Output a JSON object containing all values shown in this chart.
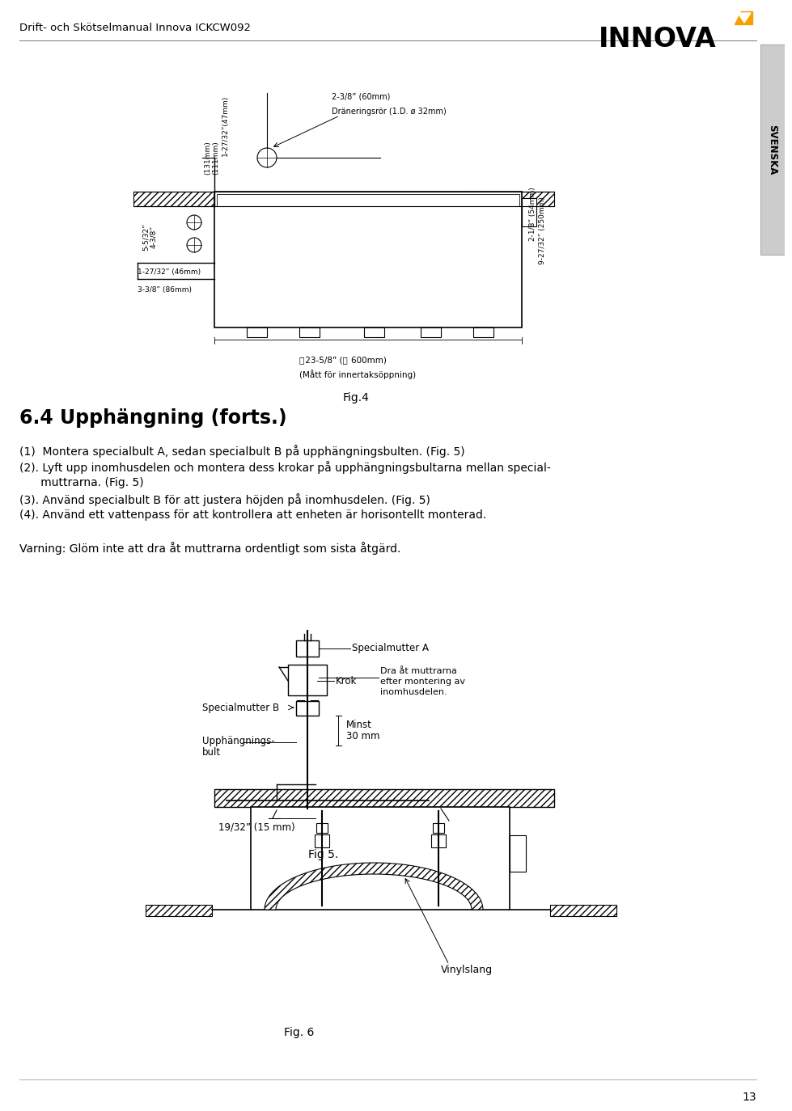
{
  "page_title": "Drift- och Skötselmanual Innova ICKCW092",
  "brand": "INNOVA",
  "side_text": "SVENSKA",
  "section_title": "6.4 Upphängning (forts.)",
  "instructions": [
    "(1)  Montera specialbult A, sedan specialbult B på upphängningsbulten. (Fig. 5)",
    "(2). Lyft upp inomhusdelen och montera dess krokar på upphängningsbultarna mellan special-",
    "      muttrarna. (Fig. 5)",
    "(3). Använd specialbult B för att justera höjden på inomhusdelen. (Fig. 5)",
    "(4). Använd ett vattenpass för att kontrollera att enheten är horisontellt monterad."
  ],
  "warning": "Varning: Glöm inte att dra åt muttrarna ordentligt som sista åtgärd.",
  "fig4_caption": "Fig.4",
  "fig5_caption": "Fig 5.",
  "fig6_caption": "Fig. 6",
  "page_number": "13",
  "bg_color": "#ffffff",
  "text_color": "#000000"
}
